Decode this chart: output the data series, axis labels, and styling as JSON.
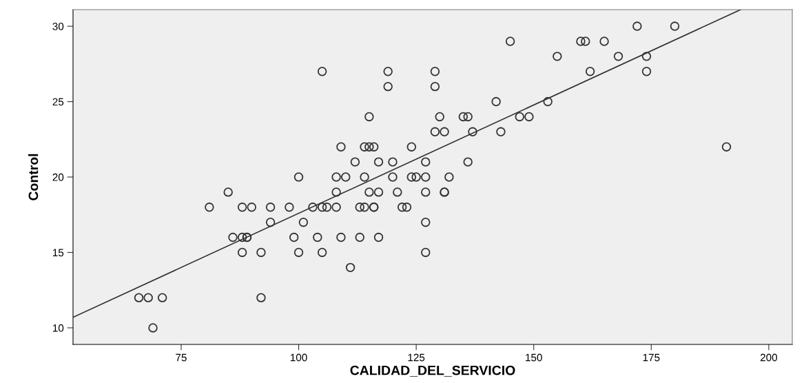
{
  "chart_data": {
    "type": "scatter",
    "xlabel": "CALIDAD_DEL_SERVICIO",
    "ylabel": "Control",
    "xlim": [
      52,
      205
    ],
    "ylim": [
      8.9,
      31.1
    ],
    "xticks": [
      75,
      100,
      125,
      150,
      175,
      200
    ],
    "yticks": [
      10,
      15,
      20,
      25,
      30
    ],
    "grid": false,
    "legend": false,
    "series": [
      {
        "marker": "circle",
        "color": "#333333",
        "x": [
          172,
          180,
          145,
          160,
          161,
          165,
          155,
          168,
          174,
          105,
          119,
          129,
          162,
          174,
          119,
          129,
          142,
          153,
          115,
          130,
          135,
          136,
          147,
          149,
          129,
          131,
          137,
          143,
          109,
          114,
          115,
          116,
          124,
          191,
          112,
          117,
          120,
          127,
          136,
          100,
          108,
          110,
          114,
          120,
          124,
          125,
          127,
          132,
          85,
          108,
          115,
          117,
          121,
          127,
          131,
          131,
          81,
          88,
          90,
          94,
          98,
          103,
          105,
          106,
          108,
          113,
          114,
          116,
          116,
          122,
          123,
          94,
          101,
          127,
          86,
          88,
          89,
          89,
          99,
          104,
          109,
          113,
          117,
          88,
          92,
          100,
          105,
          127,
          111,
          66,
          68,
          71,
          92,
          69
        ],
        "values": [
          30,
          30,
          29,
          29,
          29,
          29,
          28,
          28,
          28,
          27,
          27,
          27,
          27,
          27,
          26,
          26,
          25,
          25,
          24,
          24,
          24,
          24,
          24,
          24,
          23,
          23,
          23,
          23,
          22,
          22,
          22,
          22,
          22,
          22,
          21,
          21,
          21,
          21,
          21,
          20,
          20,
          20,
          20,
          20,
          20,
          20,
          20,
          20,
          19,
          19,
          19,
          19,
          19,
          19,
          19,
          19,
          18,
          18,
          18,
          18,
          18,
          18,
          18,
          18,
          18,
          18,
          18,
          18,
          18,
          18,
          18,
          17,
          17,
          17,
          16,
          16,
          16,
          16,
          16,
          16,
          16,
          16,
          16,
          15,
          15,
          15,
          15,
          15,
          14,
          12,
          12,
          12,
          12,
          10
        ]
      },
      {
        "type": "line",
        "color": "#333333",
        "line_style": "solid",
        "x": [
          52,
          194
        ],
        "values": [
          10.7,
          31.1
        ]
      }
    ]
  }
}
